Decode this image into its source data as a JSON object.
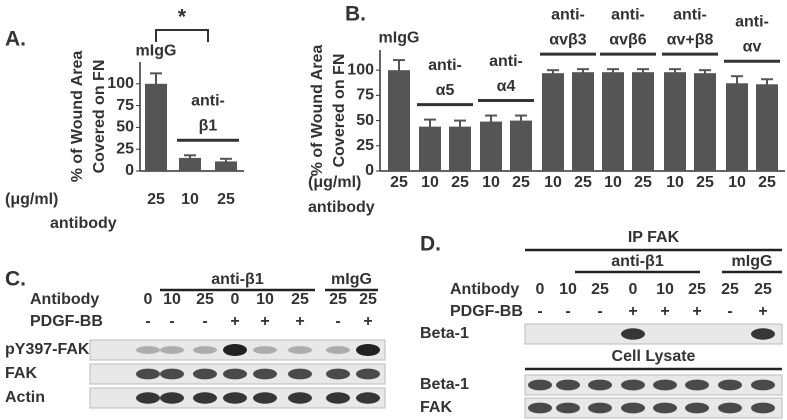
{
  "chart_data": [
    {
      "type": "bar",
      "panel": "A.",
      "y_label": [
        "% of Wound Area",
        "Covered on FN"
      ],
      "unit_label": "(μg/ml)",
      "x_label": "antibody",
      "ylim": [
        0,
        125
      ],
      "yticks": [
        0,
        25,
        50,
        75,
        100
      ],
      "color": "#555555",
      "significance": "*",
      "groups": [
        {
          "label": [
            "mIgG"
          ],
          "categories": [
            "25"
          ],
          "values": [
            100
          ],
          "errors": [
            12
          ]
        },
        {
          "label": [
            "anti-",
            "β1"
          ],
          "categories": [
            "10",
            "25"
          ],
          "values": [
            15,
            11
          ],
          "errors": [
            3,
            3
          ]
        }
      ]
    },
    {
      "type": "bar",
      "panel": "B.",
      "y_label": [
        "% of Wound Area",
        "Covered on FN"
      ],
      "unit_label": "(μg/ml)",
      "x_label": "antibody",
      "ylim": [
        0,
        120
      ],
      "yticks": [
        0,
        25,
        50,
        75,
        100
      ],
      "color": "#555555",
      "groups": [
        {
          "label": [
            "mIgG"
          ],
          "categories": [
            "25"
          ],
          "values": [
            100
          ],
          "errors": [
            10
          ]
        },
        {
          "label": [
            "anti-",
            "α5"
          ],
          "categories": [
            "10",
            "25"
          ],
          "values": [
            44,
            44
          ],
          "errors": [
            7,
            6
          ]
        },
        {
          "label": [
            "anti-",
            "α4"
          ],
          "categories": [
            "10",
            "25"
          ],
          "values": [
            49,
            50
          ],
          "errors": [
            6,
            5
          ]
        },
        {
          "label": [
            "anti-",
            "αvβ3"
          ],
          "categories": [
            "10",
            "25"
          ],
          "values": [
            97,
            98
          ],
          "errors": [
            3,
            3
          ]
        },
        {
          "label": [
            "anti-",
            "αvβ6"
          ],
          "categories": [
            "10",
            "25"
          ],
          "values": [
            98,
            98
          ],
          "errors": [
            3,
            3
          ]
        },
        {
          "label": [
            "anti-",
            "αv+β8"
          ],
          "categories": [
            "10",
            "25"
          ],
          "values": [
            98,
            97
          ],
          "errors": [
            3,
            3
          ]
        },
        {
          "label": [
            "anti-",
            "αv"
          ],
          "categories": [
            "10",
            "25"
          ],
          "values": [
            87,
            86
          ],
          "errors": [
            7,
            5
          ]
        }
      ]
    }
  ],
  "blots": [
    {
      "panel": "C.",
      "groups": [
        "anti-β1",
        "mIgG"
      ],
      "rows": [
        {
          "label": "Antibody",
          "cells": [
            "0",
            "10",
            "25",
            "0",
            "10",
            "25",
            "25",
            "25"
          ]
        },
        {
          "label": "PDGF-BB",
          "cells": [
            "-",
            "-",
            "-",
            "+",
            "+",
            "+",
            "-",
            "+"
          ]
        }
      ],
      "bands": [
        "pY397-FAK",
        "FAK",
        "Actin"
      ]
    },
    {
      "panel": "D.",
      "title": "IP FAK",
      "groups": [
        "anti-β1",
        "mIgG"
      ],
      "rows": [
        {
          "label": "Antibody",
          "cells": [
            "0",
            "10",
            "25",
            "0",
            "10",
            "25",
            "25",
            "25"
          ]
        },
        {
          "label": "PDGF-BB",
          "cells": [
            "-",
            "-",
            "-",
            "+",
            "+",
            "+",
            "-",
            "+"
          ]
        }
      ],
      "bands": [
        "Beta-1"
      ],
      "section": "Cell Lysate",
      "lysate_bands": [
        "Beta-1",
        "FAK"
      ]
    }
  ]
}
